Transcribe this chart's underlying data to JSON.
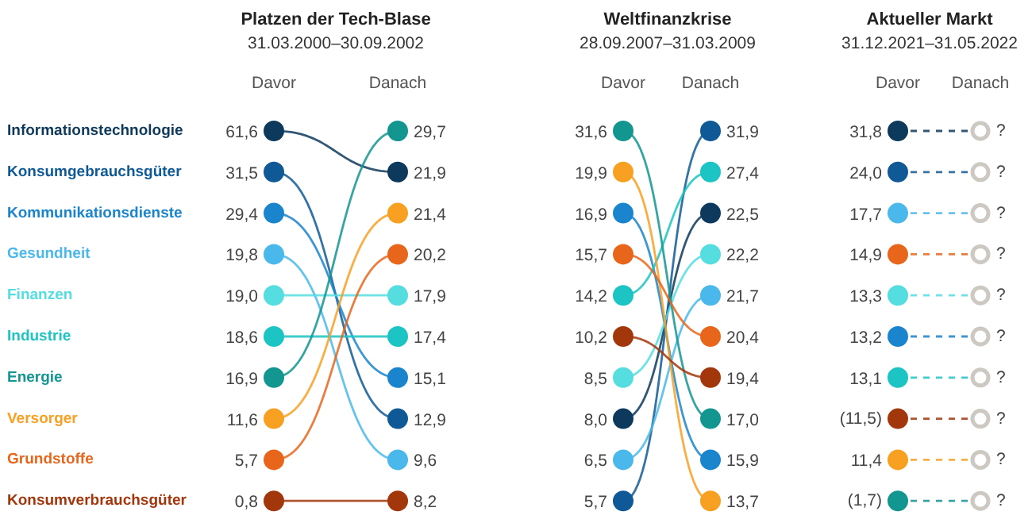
{
  "chart_data": [
    {
      "type": "other",
      "title": "Platzen der Tech-Blase",
      "subtitle": "31.03.2000–30.09.2002",
      "categories": [
        "Davor",
        "Danach"
      ],
      "series": [
        {
          "name": "Informationstechnologie",
          "color": "#0d3a5c",
          "values": [
            61.6,
            21.9
          ],
          "value_labels": [
            "61,6",
            "21,9"
          ]
        },
        {
          "name": "Konsumgebrauchsgüter",
          "color": "#0f5a96",
          "values": [
            31.5,
            12.9
          ],
          "value_labels": [
            "31,5",
            "12,9"
          ]
        },
        {
          "name": "Kommunikationsdienste",
          "color": "#1a85cc",
          "values": [
            29.4,
            15.1
          ],
          "value_labels": [
            "29,4",
            "15,1"
          ]
        },
        {
          "name": "Gesundheit",
          "color": "#4ab8ea",
          "values": [
            19.8,
            9.6
          ],
          "value_labels": [
            "19,8",
            "9,6"
          ]
        },
        {
          "name": "Finanzen",
          "color": "#55dde0",
          "values": [
            19.0,
            17.9
          ],
          "value_labels": [
            "19,0",
            "17,9"
          ]
        },
        {
          "name": "Industrie",
          "color": "#1cc4c4",
          "values": [
            18.6,
            17.4
          ],
          "value_labels": [
            "18,6",
            "17,4"
          ]
        },
        {
          "name": "Energie",
          "color": "#139590",
          "values": [
            16.9,
            29.7
          ],
          "value_labels": [
            "16,9",
            "29,7"
          ]
        },
        {
          "name": "Versorger",
          "color": "#f7a021",
          "values": [
            11.6,
            21.4
          ],
          "value_labels": [
            "11,6",
            "21,4"
          ]
        },
        {
          "name": "Grundstoffe",
          "color": "#e8661c",
          "values": [
            5.7,
            20.2
          ],
          "value_labels": [
            "5,7",
            "20,2"
          ]
        },
        {
          "name": "Konsumverbrauchsgüter",
          "color": "#a3370c",
          "values": [
            0.8,
            8.2
          ],
          "value_labels": [
            "0,8",
            "8,2"
          ]
        }
      ]
    },
    {
      "type": "other",
      "title": "Weltfinanzkrise",
      "subtitle": "28.09.2007–31.03.2009",
      "categories": [
        "Davor",
        "Danach"
      ],
      "series": [
        {
          "color": "#0d3a5c",
          "values": [
            8.0,
            22.5
          ],
          "value_labels": [
            "8,0",
            "22,5"
          ]
        },
        {
          "color": "#0f5a96",
          "values": [
            5.7,
            31.9
          ],
          "value_labels": [
            "5,7",
            "31,9"
          ]
        },
        {
          "color": "#1a85cc",
          "values": [
            16.9,
            15.9
          ],
          "value_labels": [
            "16,9",
            "15,9"
          ]
        },
        {
          "color": "#4ab8ea",
          "values": [
            6.5,
            21.7
          ],
          "value_labels": [
            "6,5",
            "21,7"
          ]
        },
        {
          "color": "#55dde0",
          "values": [
            8.5,
            22.2
          ],
          "value_labels": [
            "8,5",
            "22,2"
          ]
        },
        {
          "color": "#1cc4c4",
          "values": [
            14.2,
            27.4
          ],
          "value_labels": [
            "14,2",
            "27,4"
          ]
        },
        {
          "color": "#139590",
          "values": [
            31.6,
            17.0
          ],
          "value_labels": [
            "31,6",
            "17,0"
          ]
        },
        {
          "color": "#f7a021",
          "values": [
            19.9,
            13.7
          ],
          "value_labels": [
            "19,9",
            "13,7"
          ]
        },
        {
          "color": "#e8661c",
          "values": [
            15.7,
            20.4
          ],
          "value_labels": [
            "15,7",
            "20,4"
          ]
        },
        {
          "color": "#a3370c",
          "values": [
            10.2,
            19.4
          ],
          "value_labels": [
            "10,2",
            "19,4"
          ]
        }
      ]
    },
    {
      "type": "other",
      "title": "Aktueller Markt",
      "subtitle": "31.12.2021–31.05.2022",
      "categories": [
        "Davor",
        "Danach"
      ],
      "series": [
        {
          "color": "#0d3a5c",
          "values": [
            31.8,
            null
          ],
          "value_labels": [
            "31,8",
            "?"
          ],
          "colors": [
            "#0d3a5c",
            "#cdc9c2"
          ]
        },
        {
          "color": "#0f5a96",
          "values": [
            24.0,
            null
          ],
          "value_labels": [
            "24,0",
            "?"
          ],
          "colors": [
            "#0f5a96",
            "#cdc9c2"
          ]
        },
        {
          "color": "#1a85cc",
          "values": [
            13.2,
            null
          ],
          "value_labels": [
            "13,2",
            "?"
          ],
          "colors": [
            "#1a85cc",
            "#cdc9c2"
          ]
        },
        {
          "color": "#4ab8ea",
          "values": [
            17.7,
            null
          ],
          "value_labels": [
            "17,7",
            "?"
          ],
          "colors": [
            "#4ab8ea",
            "#cdc9c2"
          ]
        },
        {
          "color": "#55dde0",
          "values": [
            13.3,
            null
          ],
          "value_labels": [
            "13,3",
            "?"
          ],
          "colors": [
            "#55dde0",
            "#cdc9c2"
          ]
        },
        {
          "color": "#1cc4c4",
          "values": [
            13.1,
            null
          ],
          "value_labels": [
            "13,1",
            "?"
          ],
          "colors": [
            "#1cc4c4",
            "#cdc9c2"
          ]
        },
        {
          "color": "#139590",
          "values": [
            -1.7,
            null
          ],
          "value_labels": [
            "(1,7)",
            "?"
          ],
          "colors": [
            "#139590",
            "#cdc9c2"
          ]
        },
        {
          "color": "#f7a021",
          "values": [
            11.4,
            null
          ],
          "value_labels": [
            "11,4",
            "?"
          ],
          "colors": [
            "#f7a021",
            "#cdc9c2"
          ]
        },
        {
          "color": "#e8661c",
          "values": [
            14.9,
            null
          ],
          "value_labels": [
            "14,9",
            "?"
          ],
          "colors": [
            "#e8661c",
            "#cdc9c2"
          ]
        },
        {
          "color": "#a3370c",
          "values": [
            -11.5,
            null
          ],
          "value_labels": [
            "(11,5)",
            "?"
          ],
          "colors": [
            "#a3370c",
            "#cdc9c2"
          ]
        }
      ]
    }
  ]
}
